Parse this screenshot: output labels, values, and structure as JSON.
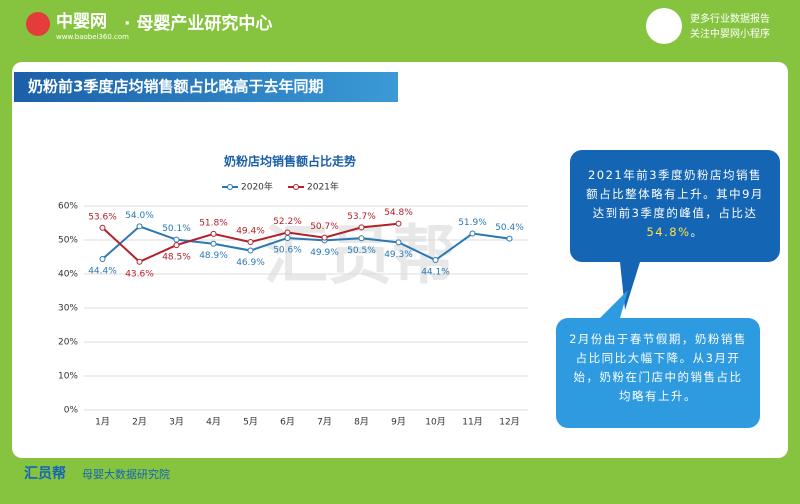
{
  "header": {
    "brand": "中婴网",
    "url": "www.baobei360.com",
    "center": "· 母婴产业研究中心",
    "promo1": "更多行业数据报告",
    "promo2": "关注中婴网小程序"
  },
  "banner": "奶粉前3季度店均销售额占比略高于去年同期",
  "chart_data": {
    "type": "line",
    "title": "奶粉店均销售额占比走势",
    "categories": [
      "1月",
      "2月",
      "3月",
      "4月",
      "5月",
      "6月",
      "7月",
      "8月",
      "9月",
      "10月",
      "11月",
      "12月"
    ],
    "series": [
      {
        "name": "2020年",
        "color": "#2a78b4",
        "values": [
          44.4,
          54.0,
          50.1,
          48.9,
          46.9,
          50.6,
          49.9,
          50.5,
          49.3,
          44.1,
          51.9,
          50.4
        ],
        "value_labels": [
          "44.4%",
          "54.0%",
          "50.1%",
          "48.9%",
          "46.9%",
          "50.6%",
          "49.9%",
          "50.5%",
          "49.3%",
          "44.1%",
          "51.9%",
          "50.4%"
        ]
      },
      {
        "name": "2021年",
        "color": "#b3202a",
        "values": [
          53.6,
          43.6,
          48.5,
          51.8,
          49.4,
          52.2,
          50.7,
          53.7,
          54.8,
          null,
          null,
          null
        ],
        "value_labels": [
          "53.6%",
          "43.6%",
          "48.5%",
          "51.8%",
          "49.4%",
          "52.2%",
          "50.7%",
          "53.7%",
          "54.8%",
          null,
          null,
          null
        ]
      }
    ],
    "ylim": [
      0,
      60
    ],
    "yticks": [
      {
        "value": 0,
        "label": "0%"
      },
      {
        "value": 10,
        "label": "10%"
      },
      {
        "value": 20,
        "label": "20%"
      },
      {
        "value": 30,
        "label": "30%"
      },
      {
        "value": 40,
        "label": "40%"
      },
      {
        "value": 50,
        "label": "50%"
      },
      {
        "value": 60,
        "label": "60%"
      }
    ],
    "grid": true,
    "legend": "top"
  },
  "notes": [
    {
      "text": "2021年前3季度奶粉店均销售额占比整体略有上升。其中9月达到前3季度的峰值，占比达",
      "highlight": "54.8%",
      "tail": "。"
    },
    {
      "text": "2月份由于春节假期，奶粉销售占比同比大幅下降。从3月开始，奶粉在门店中的销售占比均略有上升。"
    }
  ],
  "watermark": "汇员帮",
  "footer": {
    "logo": "汇员帮",
    "sub": "母婴大数据研究院"
  }
}
